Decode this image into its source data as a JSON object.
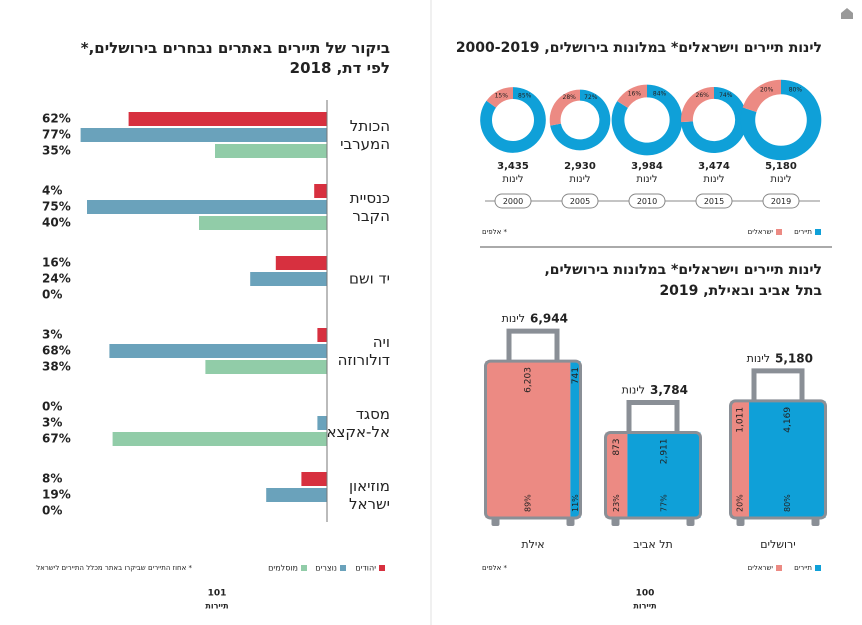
{
  "chart_data": [
    {
      "type": "hbar",
      "title": "ביקור של תיירים באתרים נבחרים בירושלים,*\nלפי דת, 2018",
      "categories": [
        "הכותל\nהמערבי",
        "כנסיית\nהקבר",
        "יד ושם",
        "ויה\nדולורוזה",
        "מסגד\nאל-אקצא",
        "מוזיאון\nישראל"
      ],
      "series": [
        {
          "name": "יהודים",
          "color": "#d7303f",
          "values": [
            62,
            4,
            16,
            3,
            0,
            8
          ],
          "value_labels": [
            "62%",
            "4%",
            "16%",
            "3%",
            "0%",
            "8%"
          ]
        },
        {
          "name": "נוצרים",
          "color": "#6aa2bb",
          "values": [
            77,
            75,
            24,
            68,
            3,
            19
          ],
          "value_labels": [
            "77%",
            "75%",
            "24%",
            "68%",
            "3%",
            "19%"
          ]
        },
        {
          "name": "מוסלמים",
          "color": "#91cca8",
          "values": [
            35,
            40,
            0,
            38,
            67,
            0
          ],
          "value_labels": [
            "35%",
            "40%",
            "0%",
            "38%",
            "67%",
            "0%"
          ]
        }
      ],
      "xlim": [
        0,
        100
      ],
      "note": "* אחוז התיירים שביקרו באתר מכלל התיירים לישראל"
    },
    {
      "type": "donut",
      "title": "לינות תיירים וישראלים* במלונות בירושלים, 2000-2019",
      "categories": [
        2000,
        2005,
        2010,
        2015,
        2019
      ],
      "totals": [
        3435,
        2930,
        3984,
        3474,
        5180
      ],
      "total_labels": [
        "3,435",
        "2,930",
        "3,984",
        "3,474",
        "5,180"
      ],
      "unit": "לינות",
      "series": [
        {
          "name": "תיירים",
          "color": "#0fa0d8",
          "values": [
            85,
            72,
            84,
            74,
            80
          ],
          "value_labels": [
            "85%",
            "72%",
            "84%",
            "74%",
            "80%"
          ]
        },
        {
          "name": "ישראלים",
          "color": "#ec8a83",
          "values": [
            15,
            28,
            16,
            26,
            20
          ],
          "value_labels": [
            "15%",
            "28%",
            "16%",
            "26%",
            "20%"
          ]
        }
      ],
      "note": "* אלפים"
    },
    {
      "type": "suitcase",
      "title": "לינות תיירים וישראלים* במלונות בירושלים,\nבתל אביב ובאילת, 2019",
      "categories": [
        "ירושלים",
        "תל אביב",
        "אילת"
      ],
      "totals": [
        5180,
        3784,
        6944
      ],
      "total_labels": [
        "5,180",
        "3,784",
        "6,944"
      ],
      "unit": "לינות",
      "series": [
        {
          "name": "תיירים",
          "color": "#0fa0d8",
          "values": [
            4169,
            2911,
            741
          ],
          "value_labels": [
            "4,169",
            "2,911",
            "741"
          ],
          "shares": [
            80,
            77,
            11
          ],
          "share_labels": [
            "80%",
            "77%",
            "11%"
          ]
        },
        {
          "name": "ישראלים",
          "color": "#ec8a83",
          "values": [
            1011,
            873,
            6203
          ],
          "value_labels": [
            "1,011",
            "873",
            "6,203"
          ],
          "shares": [
            20,
            23,
            89
          ],
          "share_labels": [
            "20%",
            "23%",
            "89%"
          ]
        }
      ],
      "note": "* אלפים"
    }
  ],
  "pages": [
    {
      "number": 101,
      "label": "תיירות"
    },
    {
      "number": 100,
      "label": "תיירות"
    }
  ]
}
